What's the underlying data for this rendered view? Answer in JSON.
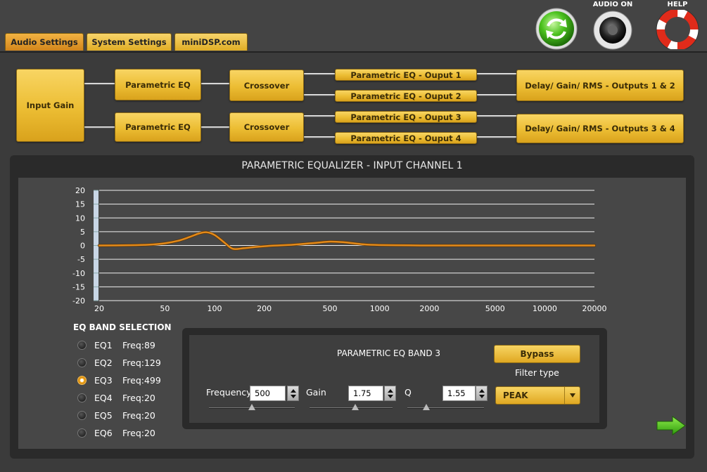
{
  "tabs": [
    {
      "label": "Audio Settings",
      "active": true
    },
    {
      "label": "System Settings",
      "active": false
    },
    {
      "label": "miniDSP.com",
      "active": false
    }
  ],
  "top_icons": {
    "refresh": "refresh-icon",
    "audio_label": "AUDIO ON",
    "help_label": "HELP"
  },
  "flow": {
    "input_gain": "Input Gain",
    "peq": "Parametric EQ",
    "crossover": "Crossover",
    "out1": "Parametric EQ - Ouput 1",
    "out2": "Parametric EQ - Ouput 2",
    "out3": "Parametric EQ - Ouput 3",
    "out4": "Parametric EQ - Ouput 4",
    "delay12": "Delay/ Gain/ RMS - Outputs 1 & 2",
    "delay34": "Delay/ Gain/ RMS - Outputs 3 & 4"
  },
  "panel_title": "PARAMETRIC EQUALIZER - INPUT CHANNEL 1",
  "chart_data": {
    "type": "line",
    "title": "",
    "xlabel": "",
    "ylabel": "",
    "x_scale": "log",
    "xlim": [
      20,
      20000
    ],
    "ylim": [
      -20,
      20
    ],
    "x_ticks": [
      "20",
      "50",
      "100",
      "200",
      "500",
      "1000",
      "2000",
      "5000",
      "10000",
      "20000"
    ],
    "y_ticks": [
      "20",
      "15",
      "10",
      "5",
      "0",
      "-5",
      "-10",
      "-15",
      "-20"
    ],
    "grid": true,
    "series": [
      {
        "color": "#e38a1a",
        "x": [
          20,
          30,
          40,
          50,
          60,
          70,
          80,
          89,
          100,
          115,
          129,
          150,
          180,
          220,
          300,
          400,
          499,
          600,
          800,
          1000,
          1500,
          2000,
          5000,
          10000,
          20000
        ],
        "y": [
          0,
          0.1,
          0.3,
          0.8,
          1.7,
          3.0,
          4.3,
          4.8,
          3.8,
          1.0,
          -1.2,
          -1.0,
          -0.5,
          -0.1,
          0.3,
          0.9,
          1.4,
          1.2,
          0.4,
          0.15,
          0.05,
          0,
          0,
          0,
          0
        ]
      }
    ]
  },
  "bands": {
    "title": "EQ BAND SELECTION",
    "items": [
      {
        "name": "EQ1",
        "freq": "Freq:89",
        "selected": false
      },
      {
        "name": "EQ2",
        "freq": "Freq:129",
        "selected": false
      },
      {
        "name": "EQ3",
        "freq": "Freq:499",
        "selected": true
      },
      {
        "name": "EQ4",
        "freq": "Freq:20",
        "selected": false
      },
      {
        "name": "EQ5",
        "freq": "Freq:20",
        "selected": false
      },
      {
        "name": "EQ6",
        "freq": "Freq:20",
        "selected": false
      }
    ]
  },
  "band_panel": {
    "title": "PARAMETRIC EQ BAND 3",
    "bypass": "Bypass",
    "filter_type_label": "Filter type",
    "filter_type": "PEAK",
    "frequency_label": "Frequency",
    "frequency": "500",
    "gain_label": "Gain",
    "gain": "1.75",
    "q_label": "Q",
    "q": "1.55",
    "frequency_slider": 0.5,
    "gain_slider": 0.55,
    "q_slider": 0.25
  },
  "next_icon": "next-arrow-icon"
}
